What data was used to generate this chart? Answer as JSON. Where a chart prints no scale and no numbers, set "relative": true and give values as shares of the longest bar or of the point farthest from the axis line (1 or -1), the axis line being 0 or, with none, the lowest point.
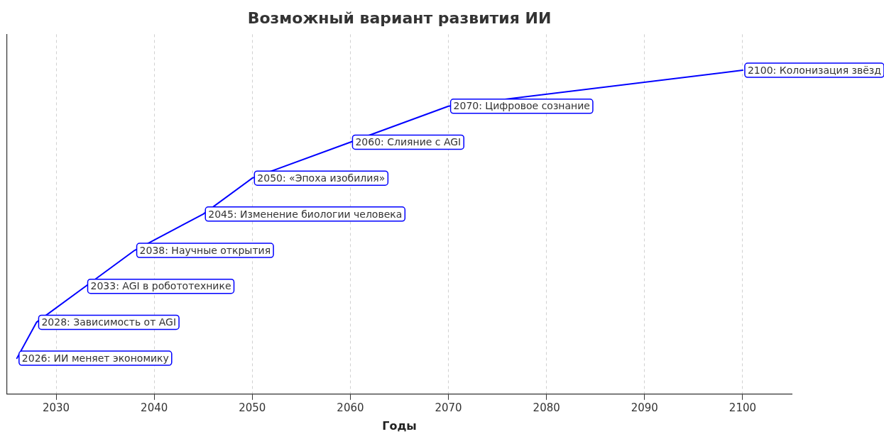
{
  "chart_data": {
    "type": "line",
    "title": "Возможный вариант развития ИИ",
    "xlabel": "Годы",
    "x": [
      2026,
      2028,
      2033,
      2038,
      2045,
      2050,
      2060,
      2070,
      2100
    ],
    "relative": true,
    "series": [
      {
        "color": "#0000ff",
        "values": [
          0.111,
          0.222,
          0.333,
          0.444,
          0.556,
          0.667,
          0.778,
          0.889,
          1
        ]
      }
    ],
    "xlim": [
      2025,
      2105
    ],
    "xticks": [
      2030,
      2040,
      2050,
      2060,
      2070,
      2080,
      2090,
      2100
    ],
    "grid": "x",
    "marker": "none",
    "line_style": "solid",
    "annotations": [
      {
        "text": "2026: ИИ меняет экономику",
        "x": 2026,
        "y": 0.111
      },
      {
        "text": "2028: Зависимость от AGI",
        "x": 2028,
        "y": 0.222
      },
      {
        "text": "2033: AGI в робототехнике",
        "x": 2033,
        "y": 0.333
      },
      {
        "text": "2038: Научные открытия",
        "x": 2038,
        "y": 0.444
      },
      {
        "text": "2045: Изменение биологии человека",
        "x": 2045,
        "y": 0.556
      },
      {
        "text": "2050: «Эпоха изобилия»",
        "x": 2050,
        "y": 0.667
      },
      {
        "text": "2060: Слияние с AGI",
        "x": 2060,
        "y": 0.778
      },
      {
        "text": "2070: Цифровое сознание",
        "x": 2070,
        "y": 0.889
      },
      {
        "text": "2100: Колонизация звёзд",
        "x": 2100,
        "y": 1
      }
    ]
  }
}
